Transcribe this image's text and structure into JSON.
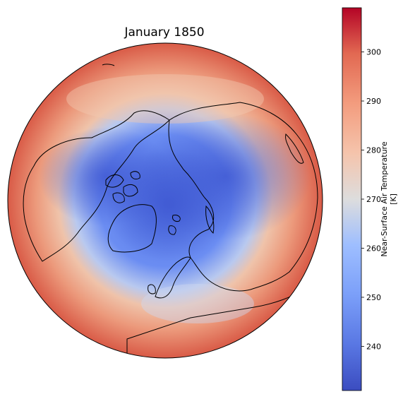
{
  "title": "January 1850",
  "colorbar": {
    "label_line1": "Near-Surface Air Temperature",
    "label_line2": "[K]",
    "vmin": 231,
    "vmax": 309,
    "ticks": [
      240,
      250,
      260,
      270,
      280,
      290,
      300
    ],
    "colormap": "coolwarm",
    "colors": {
      "low": "#3b4cc0",
      "mid": "#dddddd",
      "high": "#b40426"
    }
  },
  "map": {
    "projection": "orthographic",
    "view": "north-pole",
    "coastline_color": "#000000"
  }
}
